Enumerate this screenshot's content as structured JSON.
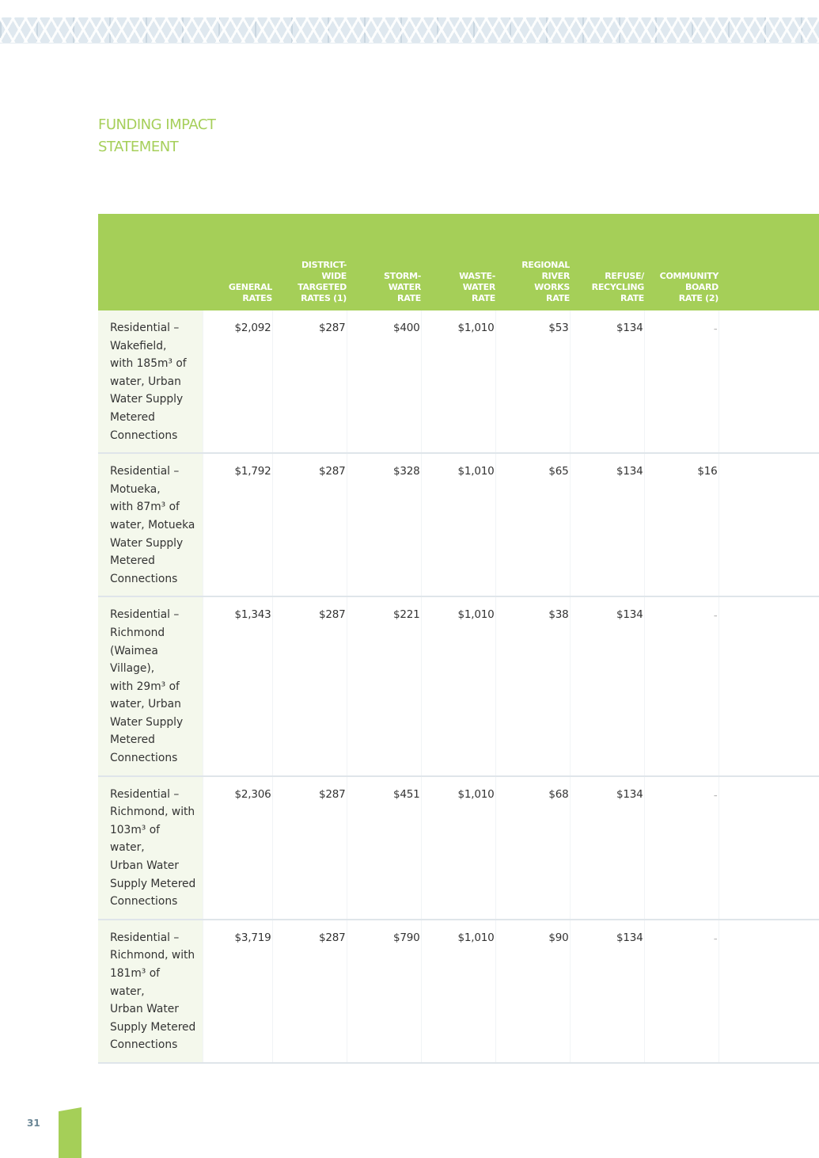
{
  "page": {
    "title_line1": "FUNDING IMPACT",
    "title_line2": "STATEMENT",
    "page_number": "31"
  },
  "table": {
    "columns": [
      "GENERAL RATES",
      "DISTRICT-WIDE TARGETED RATES (1)",
      "STORM-WATER RATE",
      "WASTE-WATER RATE",
      "REGIONAL RIVER WORKS RATE",
      "REFUSE/ RECYCLING RATE",
      "COMMUNITY BOARD RATE (2)"
    ],
    "header_lines": [
      [
        "GENERAL",
        "RATES"
      ],
      [
        "DISTRICT-",
        "WIDE",
        "TARGETED",
        "RATES (1)"
      ],
      [
        "STORM-",
        "WATER",
        "RATE"
      ],
      [
        "WASTE-",
        "WATER",
        "RATE"
      ],
      [
        "REGIONAL",
        "RIVER",
        "WORKS",
        "RATE"
      ],
      [
        "REFUSE/",
        "RECYCLING",
        "RATE"
      ],
      [
        "COMMUNITY",
        "BOARD",
        "RATE (2)"
      ]
    ],
    "rows": [
      {
        "label_lines": [
          "Residential –",
          "Wakefield,",
          "with 185m³ of",
          "water, Urban",
          "Water Supply",
          "Metered",
          "Connections"
        ],
        "values": [
          "$2,092",
          "$287",
          "$400",
          "$1,010",
          "$53",
          "$134",
          "–"
        ]
      },
      {
        "label_lines": [
          "Residential –",
          "Motueka,",
          "with 87m³ of",
          "water, Motueka",
          "Water Supply",
          "Metered",
          "Connections"
        ],
        "values": [
          "$1,792",
          "$287",
          "$328",
          "$1,010",
          "$65",
          "$134",
          "$16"
        ]
      },
      {
        "label_lines": [
          "Residential –",
          "Richmond",
          "(Waimea",
          "Village),",
          "with 29m³ of",
          "water, Urban",
          "Water Supply",
          "Metered",
          "Connections"
        ],
        "values": [
          "$1,343",
          "$287",
          "$221",
          "$1,010",
          "$38",
          "$134",
          "–"
        ]
      },
      {
        "label_lines": [
          "Residential –",
          "Richmond, with",
          "103m³ of water,",
          "Urban Water",
          "Supply Metered",
          "Connections"
        ],
        "values": [
          "$2,306",
          "$287",
          "$451",
          "$1,010",
          "$68",
          "$134",
          "–"
        ]
      },
      {
        "label_lines": [
          "Residential –",
          "Richmond, with",
          "181m³ of water,",
          "Urban Water",
          "Supply Metered",
          "Connections"
        ],
        "values": [
          "$3,719",
          "$287",
          "$790",
          "$1,010",
          "$90",
          "$134",
          "–"
        ]
      }
    ]
  }
}
